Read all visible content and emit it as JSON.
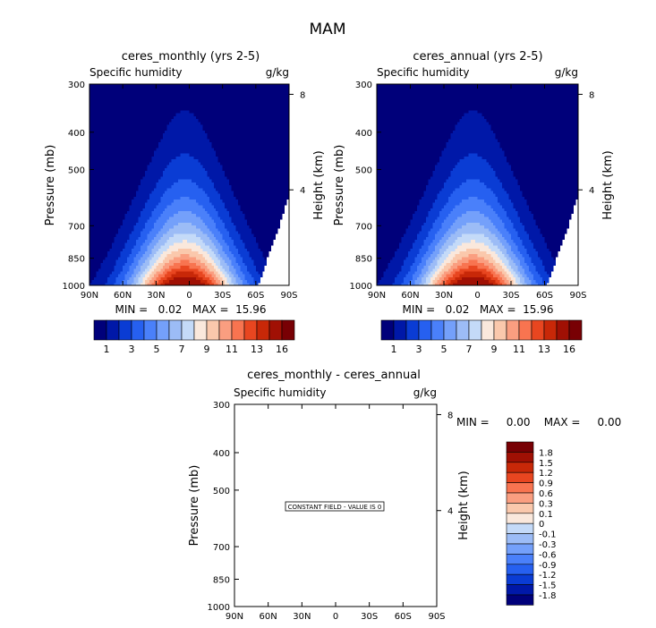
{
  "figure_title": "MAM",
  "chart_data": [
    {
      "type": "contour",
      "title": "ceres_monthly (yrs 2-5)",
      "subtitle_left": "Specific humidity",
      "subtitle_right": "g/kg",
      "ylabel": "Pressure (mb)",
      "ylabel_right": "Height (km)",
      "x_ticks": [
        "90N",
        "60N",
        "30N",
        "0",
        "30S",
        "60S",
        "90S"
      ],
      "y_ticks": [
        "300",
        "400",
        "500",
        "700",
        "850",
        "1000"
      ],
      "y_ticks_right": [
        "8",
        "4"
      ],
      "stats_text": "MIN =   0.02   MAX =  15.96",
      "min": 0.02,
      "max": 15.96,
      "levels": [
        1,
        2,
        3,
        4,
        5,
        6,
        7,
        8,
        9,
        10,
        11,
        12,
        13,
        14,
        16
      ],
      "level_labels": [
        "1",
        "3",
        "5",
        "7",
        "9",
        "11",
        "13",
        "16"
      ],
      "colors": [
        "#00007a",
        "#0018a8",
        "#0a3cd4",
        "#2660f0",
        "#4a80fa",
        "#74a0fa",
        "#9cbcf6",
        "#c4daf8",
        "#fae8dc",
        "#fac8ac",
        "#fa9e80",
        "#f87450",
        "#e84620",
        "#c82808",
        "#a01004",
        "#780004"
      ]
    },
    {
      "type": "contour",
      "title": "ceres_annual (yrs 2-5)",
      "subtitle_left": "Specific humidity",
      "subtitle_right": "g/kg",
      "ylabel": "Pressure (mb)",
      "ylabel_right": "Height (km)",
      "x_ticks": [
        "90N",
        "60N",
        "30N",
        "0",
        "30S",
        "60S",
        "90S"
      ],
      "y_ticks": [
        "300",
        "400",
        "500",
        "700",
        "850",
        "1000"
      ],
      "y_ticks_right": [
        "8",
        "4"
      ],
      "stats_text": "MIN =   0.02   MAX =  15.96",
      "min": 0.02,
      "max": 15.96,
      "levels": [
        1,
        2,
        3,
        4,
        5,
        6,
        7,
        8,
        9,
        10,
        11,
        12,
        13,
        14,
        16
      ],
      "level_labels": [
        "1",
        "3",
        "5",
        "7",
        "9",
        "11",
        "13",
        "16"
      ],
      "colors": [
        "#00007a",
        "#0018a8",
        "#0a3cd4",
        "#2660f0",
        "#4a80fa",
        "#74a0fa",
        "#9cbcf6",
        "#c4daf8",
        "#fae8dc",
        "#fac8ac",
        "#fa9e80",
        "#f87450",
        "#e84620",
        "#c82808",
        "#a01004",
        "#780004"
      ]
    },
    {
      "type": "contour",
      "title": "ceres_monthly - ceres_annual",
      "subtitle_left": "Specific humidity",
      "subtitle_right": "g/kg",
      "ylabel": "Pressure (mb)",
      "ylabel_right": "Height (km)",
      "x_ticks": [
        "90N",
        "60N",
        "30N",
        "0",
        "30S",
        "60S",
        "90S"
      ],
      "y_ticks": [
        "300",
        "400",
        "500",
        "700",
        "850",
        "1000"
      ],
      "y_ticks_right": [
        "8",
        "4"
      ],
      "stats_text": "MIN =     0.00    MAX =     0.00",
      "min": 0.0,
      "max": 0.0,
      "constant_field_text": "CONSTANT FIELD - VALUE IS 0",
      "level_labels": [
        "1.8",
        "1.5",
        "1.2",
        "0.9",
        "0.6",
        "0.3",
        "0.1",
        "0",
        "-0.1",
        "-0.3",
        "-0.6",
        "-0.9",
        "-1.2",
        "-1.5",
        "-1.8"
      ],
      "colors": [
        "#780004",
        "#a01004",
        "#c82808",
        "#e84620",
        "#f87450",
        "#fa9e80",
        "#fac8ac",
        "#fae8dc",
        "#c4daf8",
        "#9cbcf6",
        "#74a0fa",
        "#4a80fa",
        "#2660f0",
        "#0a3cd4",
        "#0018a8",
        "#00007a"
      ]
    }
  ]
}
